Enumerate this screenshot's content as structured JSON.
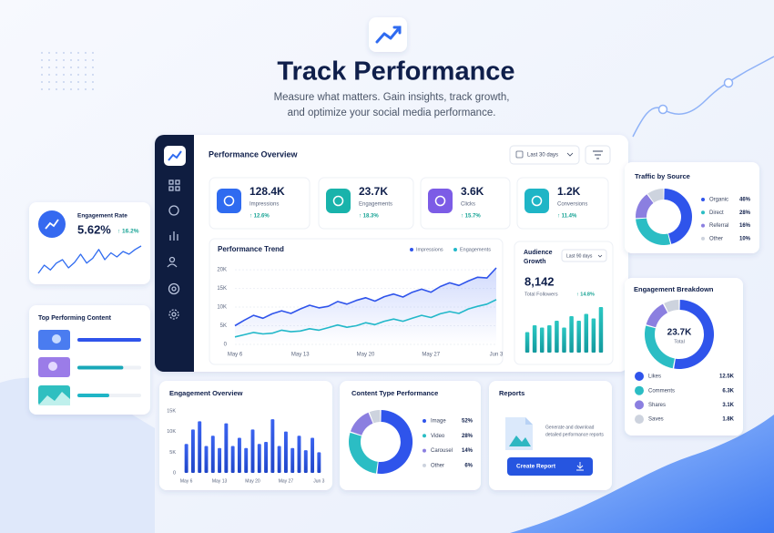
{
  "header": {
    "title": "Track Performance",
    "subtitle_lines": [
      "Measure what matters. Gain insights, track growth,",
      "and optimize your social media performance."
    ]
  },
  "performance_overview": {
    "title": "Performance Overview",
    "date_filter": "Last 30 days",
    "kpis": [
      {
        "value": "128.4K",
        "label": "Impressions",
        "change": "↑ 12.6%",
        "color": "#2f6bf0"
      },
      {
        "value": "23.7K",
        "label": "Engagements",
        "change": "↑ 18.3%",
        "color": "#19b3ab"
      },
      {
        "value": "3.6K",
        "label": "Clicks",
        "change": "↑ 15.7%",
        "color": "#7c5ce6"
      },
      {
        "value": "1.2K",
        "label": "Conversions",
        "change": "↑ 11.4%",
        "color": "#1fb5c6"
      }
    ]
  },
  "performance_trend": {
    "type": "line",
    "title": "Performance Trend",
    "categories": [
      "May 6",
      null,
      null,
      null,
      null,
      null,
      null,
      "May 13",
      null,
      null,
      null,
      null,
      null,
      null,
      "May 20",
      null,
      null,
      null,
      null,
      null,
      null,
      "May 27",
      null,
      null,
      null,
      null,
      null,
      null,
      "Jun 3"
    ],
    "series": [
      {
        "name": "Impressions",
        "color": "#2f54eb",
        "values": [
          5000,
          6500,
          7800,
          7000,
          8200,
          9000,
          8300,
          9500,
          10500,
          9800,
          10200,
          11500,
          10800,
          11800,
          12500,
          11600,
          12800,
          13500,
          12700,
          14000,
          14800,
          14000,
          15500,
          16500,
          15800,
          17000,
          18000,
          17800,
          20500
        ]
      },
      {
        "name": "Engagements",
        "color": "#22b8c9",
        "values": [
          2000,
          2600,
          3200,
          2800,
          3000,
          3800,
          3400,
          3600,
          4200,
          3800,
          4500,
          5200,
          4600,
          5000,
          5800,
          5300,
          6200,
          6800,
          6200,
          7000,
          7800,
          7200,
          8200,
          8800,
          8300,
          9500,
          10200,
          10800,
          12000
        ]
      }
    ],
    "ylim": [
      0,
      21000
    ],
    "yticks": [
      0,
      {
        "value": 5000,
        "label": "5K"
      },
      {
        "value": 10000,
        "label": "10K"
      },
      {
        "value": 15000,
        "label": "15K"
      },
      {
        "value": 20000,
        "label": "20K"
      }
    ],
    "grid": true
  },
  "audience_growth": {
    "type": "bar",
    "title_lines": [
      "Audience",
      "Growth"
    ],
    "date_filter": "Last 90 days",
    "total": "8,142",
    "total_label": "Total Followers",
    "change": "↑ 14.8%",
    "color": "#1fb5b0",
    "values": [
      4.5,
      6,
      5.5,
      6,
      7,
      5.5,
      8,
      7,
      8.5,
      7.5,
      10
    ]
  },
  "engagement_rate": {
    "type": "line",
    "title": "Engagement Rate",
    "value": "5.62%",
    "change": "↑ 16.2%",
    "color": "#2f6bf0",
    "values": [
      3,
      4.2,
      3.5,
      4.5,
      5,
      3.8,
      4.6,
      5.8,
      4.5,
      5.2,
      6.5,
      5,
      6,
      5.4,
      6.2,
      5.8,
      6.5,
      7
    ]
  },
  "top_content": {
    "type": "bar",
    "title": "Top Performing Content",
    "values": [
      100,
      72,
      50
    ],
    "colors": [
      "#2f54eb",
      "#19a8b8",
      "#1fb5c6"
    ]
  },
  "traffic_by_source": {
    "type": "pie",
    "title": "Traffic by Source",
    "categories": [
      "Organic",
      "Direct",
      "Referral",
      "Other"
    ],
    "values": [
      46,
      28,
      16,
      10
    ],
    "value_labels": [
      "46%",
      "28%",
      "16%",
      "10%"
    ],
    "colors": [
      "#2f54eb",
      "#2bbdc4",
      "#8b7fe0",
      "#cdd3de"
    ]
  },
  "engagement_breakdown": {
    "type": "pie",
    "title": "Engagement Breakdown",
    "total": "23.7K",
    "total_label": "Total",
    "categories": [
      "Likes",
      "Comments",
      "Shares",
      "Saves"
    ],
    "values": [
      12500,
      6300,
      3100,
      1800
    ],
    "value_labels": [
      "12.5K",
      "6.3K",
      "3.1K",
      "1.8K"
    ],
    "colors": [
      "#2f54eb",
      "#2bbdc4",
      "#8b7fe0",
      "#cdd3de"
    ]
  },
  "engagement_overview": {
    "type": "bar",
    "title": "Engagement Overview",
    "color": "#2f54eb",
    "categories": [
      "May 6",
      null,
      null,
      null,
      null,
      "May 13",
      null,
      null,
      null,
      null,
      "May 20",
      null,
      null,
      null,
      null,
      "May 27",
      null,
      null,
      null,
      null,
      "Jun 3"
    ],
    "values": [
      7000,
      10500,
      12500,
      6500,
      9000,
      6000,
      12000,
      6500,
      8500,
      6000,
      10500,
      7000,
      7500,
      13000,
      6500,
      10000,
      6000,
      9000,
      5500,
      8500,
      5000
    ],
    "ylim": [
      0,
      15000
    ],
    "yticks": [
      0,
      {
        "value": 5000,
        "label": "5K"
      },
      {
        "value": 10000,
        "label": "10K"
      },
      {
        "value": 15000,
        "label": "15K"
      }
    ]
  },
  "content_type": {
    "type": "pie",
    "title": "Content Type Performance",
    "categories": [
      "Image",
      "Video",
      "Carousel",
      "Other"
    ],
    "values": [
      52,
      28,
      14,
      6
    ],
    "value_labels": [
      "52%",
      "28%",
      "14%",
      "6%"
    ],
    "colors": [
      "#2f54eb",
      "#2bbdc4",
      "#8b7fe0",
      "#cdd3de"
    ]
  },
  "reports": {
    "title": "Reports",
    "description_lines": [
      "Generate and download",
      "detailed performance reports"
    ],
    "button": "Create Report"
  }
}
